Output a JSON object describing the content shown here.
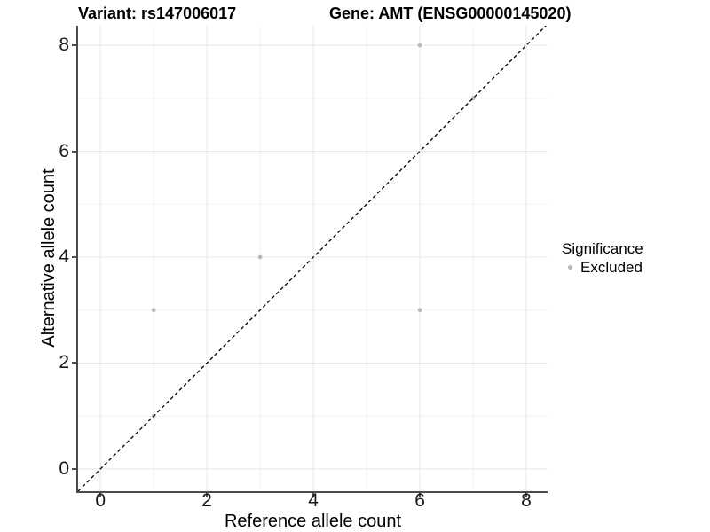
{
  "chart_data": {
    "type": "scatter",
    "titles": {
      "left": "Variant: rs147006017",
      "right": "Gene: AMT (ENSG00000145020)"
    },
    "xlabel": "Reference allele count",
    "ylabel": "Alternative allele count",
    "xlim": [
      -0.42,
      8.4
    ],
    "ylim": [
      -0.42,
      8.37
    ],
    "xticks": [
      0,
      2,
      4,
      6,
      8
    ],
    "yticks": [
      0,
      2,
      4,
      6,
      8
    ],
    "xticks_minor": [
      1,
      3,
      5,
      7
    ],
    "yticks_minor": [
      1,
      3,
      5,
      7
    ],
    "grid": "major+minor",
    "legend": {
      "title": "Significance",
      "position": "right-middle",
      "items": [
        {
          "label": "Excluded",
          "color": "#b9b9b9"
        }
      ]
    },
    "series": [
      {
        "name": "Excluded",
        "color": "#b9b9b9",
        "marker": "circle",
        "marker_radius": 2.4,
        "points": [
          [
            1,
            1
          ],
          [
            1,
            3
          ],
          [
            3,
            4
          ],
          [
            6,
            3
          ],
          [
            6,
            8
          ],
          [
            7,
            7
          ]
        ]
      }
    ],
    "reference_line": {
      "style": "dashed",
      "slope": 1,
      "intercept": 0,
      "color": "#000000"
    },
    "colors": {
      "grid_major": "#e7e7e7",
      "grid_minor": "#f3f3f3",
      "axis": "#4a4a4a",
      "tick_text": "#1a1a1a"
    }
  }
}
